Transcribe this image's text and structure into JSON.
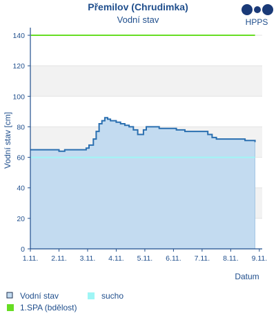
{
  "header": {
    "title": "Přemilov (Chrudimka)",
    "subtitle": "Vodní stav",
    "brand": "HPPS"
  },
  "chart_data": {
    "type": "area",
    "title": "Přemilov (Chrudimka)",
    "subtitle": "Vodní stav",
    "xlabel": "Datum",
    "ylabel": "Vodní stav [cm]",
    "ylim": [
      0,
      145
    ],
    "xlim": [
      1,
      9.1
    ],
    "yticks": [
      0,
      20,
      40,
      60,
      80,
      100,
      120,
      140
    ],
    "xticks": [
      {
        "value": 1,
        "label": "1.11."
      },
      {
        "value": 2,
        "label": "2.11."
      },
      {
        "value": 3,
        "label": "3.11."
      },
      {
        "value": 4,
        "label": "4.11."
      },
      {
        "value": 5,
        "label": "5.11."
      },
      {
        "value": 6,
        "label": "6.11."
      },
      {
        "value": 7,
        "label": "7.11."
      },
      {
        "value": 8,
        "label": "8.11."
      },
      {
        "value": 9,
        "label": "9.11."
      }
    ],
    "grid": "alternating horizontal bands",
    "legend_position": "bottom",
    "series": [
      {
        "name": "Vodní stav",
        "color": "#2a6fb0",
        "fill": "#c3dbf0",
        "x": [
          1.0,
          1.5,
          1.85,
          2.0,
          2.2,
          2.5,
          2.8,
          2.95,
          3.05,
          3.2,
          3.3,
          3.4,
          3.5,
          3.6,
          3.7,
          3.8,
          3.9,
          4.0,
          4.15,
          4.3,
          4.45,
          4.6,
          4.75,
          4.85,
          4.95,
          5.05,
          5.2,
          5.5,
          5.8,
          6.1,
          6.4,
          6.7,
          7.0,
          7.2,
          7.35,
          7.5,
          7.7,
          7.9,
          8.1,
          8.3,
          8.5,
          8.65,
          8.75,
          8.85
        ],
        "values": [
          65,
          65,
          65,
          64,
          65,
          65,
          65,
          66,
          68,
          72,
          77,
          82,
          84,
          86,
          85,
          84,
          84,
          83,
          82,
          81,
          80,
          78,
          75,
          75,
          78,
          80,
          80,
          79,
          79,
          78,
          77,
          77,
          77,
          75,
          73,
          72,
          72,
          72,
          72,
          72,
          71,
          71,
          71,
          70
        ]
      }
    ],
    "thresholds": [
      {
        "name": "sucho",
        "value": 60,
        "color": "#9ff5f5"
      },
      {
        "name": "1.SPA (bdělost)",
        "value": 140,
        "color": "#66dd22"
      }
    ],
    "legend": [
      {
        "label": "Vodní stav",
        "color": "#c3dbf0"
      },
      {
        "label": "sucho",
        "color": "#9ff5f5"
      },
      {
        "label": "1.SPA (bdělost)",
        "color": "#66dd22"
      }
    ]
  }
}
